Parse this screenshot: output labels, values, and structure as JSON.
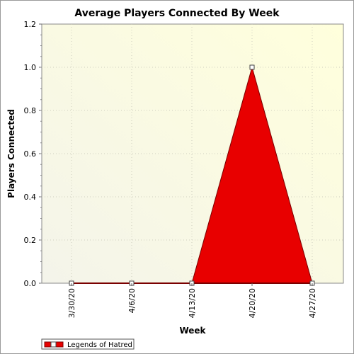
{
  "chart_data": {
    "type": "area",
    "title": "Average Players Connected By Week",
    "xlabel": "Week",
    "ylabel": "Players Connected",
    "categories": [
      "3/30/20",
      "4/6/20",
      "4/13/20",
      "4/20/20",
      "4/27/20"
    ],
    "series": [
      {
        "name": "Legends of Hatred",
        "values": [
          0,
          0,
          0,
          1.0,
          0
        ],
        "color": "#e80000"
      }
    ],
    "ylim": [
      0,
      1.2
    ],
    "yticks": [
      "0.0",
      "0.2",
      "0.4",
      "0.6",
      "0.8",
      "1.0",
      "1.2"
    ],
    "grid": true,
    "legend_position": "bottom-left",
    "colors": {
      "area_fill": "#e80000",
      "area_edge": "#7a0000",
      "plot_bg_from": "#f6f6e6",
      "plot_bg_to": "#ffffe0"
    }
  }
}
